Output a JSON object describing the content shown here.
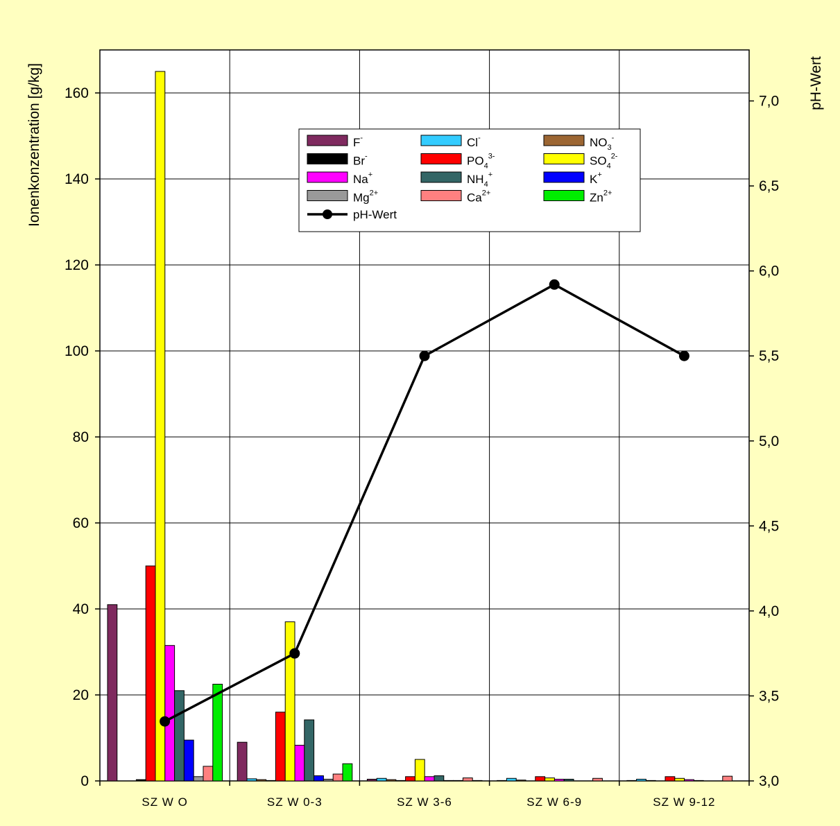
{
  "chart_data": {
    "type": "bar",
    "categories": [
      "SZ W O",
      "SZ W 0-3",
      "SZ W 3-6",
      "SZ W 6-9",
      "SZ W 9-12"
    ],
    "ylabel": "Ionenkonzentration [g/kg]",
    "y2label": "pH-Wert",
    "ylim": [
      0,
      170
    ],
    "y2lim": [
      3.0,
      7.3
    ],
    "yticks": [
      "0",
      "20",
      "40",
      "60",
      "80",
      "100",
      "120",
      "140",
      "160"
    ],
    "y2ticks": [
      "3,0",
      "3,5",
      "4,0",
      "4,5",
      "5,0",
      "5,5",
      "6,0",
      "6,5",
      "7,0"
    ],
    "grid": true,
    "legend_position": "top-center",
    "series": [
      {
        "name": "F",
        "sup": "-",
        "sub": "",
        "color": "#7f2a5f",
        "values": [
          41,
          9,
          0.4,
          0.1,
          0.1
        ]
      },
      {
        "name": "Cl",
        "sup": "-",
        "sub": "",
        "color": "#33ccff",
        "values": [
          0,
          0.5,
          0.6,
          0.6,
          0.4
        ]
      },
      {
        "name": "NO",
        "sup": "-",
        "sub": "3",
        "color": "#9c6633",
        "values": [
          0,
          0.3,
          0.3,
          0.2,
          0.1
        ]
      },
      {
        "name": "Br",
        "sup": "-",
        "sub": "",
        "color": "#000000",
        "values": [
          0.3,
          0.1,
          0.1,
          0,
          0
        ]
      },
      {
        "name": "PO",
        "sup": "3-",
        "sub": "4",
        "color": "#ff0000",
        "values": [
          50,
          16,
          1.0,
          1.0,
          1.0
        ]
      },
      {
        "name": "SO",
        "sup": "2-",
        "sub": "4",
        "color": "#ffff00",
        "values": [
          165,
          37,
          5,
          0.7,
          0.6
        ]
      },
      {
        "name": "Na",
        "sup": "+",
        "sub": "",
        "color": "#ff00ff",
        "values": [
          31.5,
          8.3,
          1.0,
          0.4,
          0.3
        ]
      },
      {
        "name": "NH",
        "sup": "+",
        "sub": "4",
        "color": "#336666",
        "values": [
          21,
          14.2,
          1.2,
          0.4,
          0.1
        ]
      },
      {
        "name": "K",
        "sup": "+",
        "sub": "",
        "color": "#0000ff",
        "values": [
          9.5,
          1.2,
          0.1,
          0,
          0
        ]
      },
      {
        "name": "Mg",
        "sup": "2+",
        "sub": "",
        "color": "#999999",
        "values": [
          1.0,
          0.4,
          0.1,
          0,
          0
        ]
      },
      {
        "name": "Ca",
        "sup": "2+",
        "sub": "",
        "color": "#ff8080",
        "values": [
          3.4,
          1.6,
          0.7,
          0.6,
          1.1
        ]
      },
      {
        "name": "Zn",
        "sup": "2+",
        "sub": "",
        "color": "#00ee00",
        "values": [
          22.5,
          4.0,
          0.1,
          0,
          0
        ]
      }
    ],
    "line_series": {
      "name": "pH-Wert",
      "color": "#000000",
      "values": [
        3.35,
        3.75,
        5.5,
        5.92,
        5.5
      ]
    }
  }
}
